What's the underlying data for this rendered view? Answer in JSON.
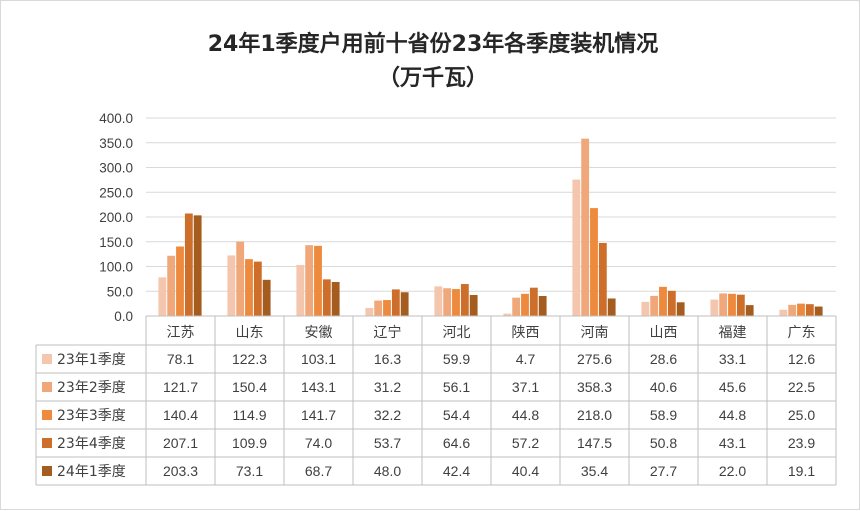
{
  "chart_data": {
    "type": "bar",
    "title_line1": "24年1季度户用前十省份23年各季度装机情况",
    "title_line2": "（万千瓦）",
    "categories": [
      "江苏",
      "山东",
      "安徽",
      "辽宁",
      "河北",
      "陕西",
      "河南",
      "山西",
      "福建",
      "广东"
    ],
    "y_ticks": [
      "0.0",
      "50.0",
      "100.0",
      "150.0",
      "200.0",
      "250.0",
      "300.0",
      "350.0",
      "400.0"
    ],
    "ylim": [
      0,
      400
    ],
    "grid": true,
    "legend": "data-table",
    "series": [
      {
        "name": "23年1季度",
        "color": "#f4c6ad",
        "values": [
          78.1,
          122.3,
          103.1,
          16.3,
          59.9,
          4.7,
          275.6,
          28.6,
          33.1,
          12.6
        ],
        "labels": [
          "78.1",
          "122.3",
          "103.1",
          "16.3",
          "59.9",
          "4.7",
          "275.6",
          "28.6",
          "33.1",
          "12.6"
        ]
      },
      {
        "name": "23年2季度",
        "color": "#f0a87b",
        "values": [
          121.7,
          150.4,
          143.1,
          31.2,
          56.1,
          37.1,
          358.3,
          40.6,
          45.6,
          22.5
        ],
        "labels": [
          "121.7",
          "150.4",
          "143.1",
          "31.2",
          "56.1",
          "37.1",
          "358.3",
          "40.6",
          "45.6",
          "22.5"
        ]
      },
      {
        "name": "23年3季度",
        "color": "#ed8a3d",
        "values": [
          140.4,
          114.9,
          141.7,
          32.2,
          54.4,
          44.8,
          218.0,
          58.9,
          44.8,
          25.0
        ],
        "labels": [
          "140.4",
          "114.9",
          "141.7",
          "32.2",
          "54.4",
          "44.8",
          "218.0",
          "58.9",
          "44.8",
          "25.0"
        ]
      },
      {
        "name": "23年4季度",
        "color": "#cd6f2a",
        "values": [
          207.1,
          109.9,
          74.0,
          53.7,
          64.6,
          57.2,
          147.5,
          50.8,
          43.1,
          23.9
        ],
        "labels": [
          "207.1",
          "109.9",
          "74.0",
          "53.7",
          "64.6",
          "57.2",
          "147.5",
          "50.8",
          "43.1",
          "23.9"
        ]
      },
      {
        "name": "24年1季度",
        "color": "#a55d1f",
        "values": [
          203.3,
          73.1,
          68.7,
          48.0,
          42.4,
          40.4,
          35.4,
          27.7,
          22.0,
          19.1
        ],
        "labels": [
          "203.3",
          "73.1",
          "68.7",
          "48.0",
          "42.4",
          "40.4",
          "35.4",
          "27.7",
          "22.0",
          "19.1"
        ]
      }
    ]
  }
}
